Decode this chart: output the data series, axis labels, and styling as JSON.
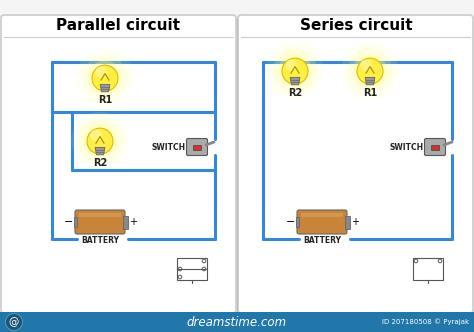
{
  "bg_color": "#f5f5f5",
  "panel_color": "#ffffff",
  "panel_edge": "#cccccc",
  "wire_color": "#3388dd",
  "wire_lw": 2.2,
  "title_left": "Parallel circuit",
  "title_right": "Series circuit",
  "title_fontsize": 11,
  "label_fontsize": 7,
  "battery_color_main": "#c8853a",
  "battery_color_cap": "#888888",
  "battery_color_dark": "#666666",
  "bulb_yellow": "#ffee44",
  "bulb_yellow_light": "#fff8aa",
  "bulb_glow": "#fffaaa",
  "bulb_base_color": "#999999",
  "bulb_base_dark": "#666666",
  "switch_body": "#888888",
  "switch_green": "#55cc55",
  "switch_red": "#cc3333",
  "switch_dark": "#555555",
  "dreamstime_bar": "#2277aa",
  "dreamstime_text": "dreamstime.com",
  "id_text": "ID 207180508 © Pyrajak",
  "schematic_color": "#555555"
}
